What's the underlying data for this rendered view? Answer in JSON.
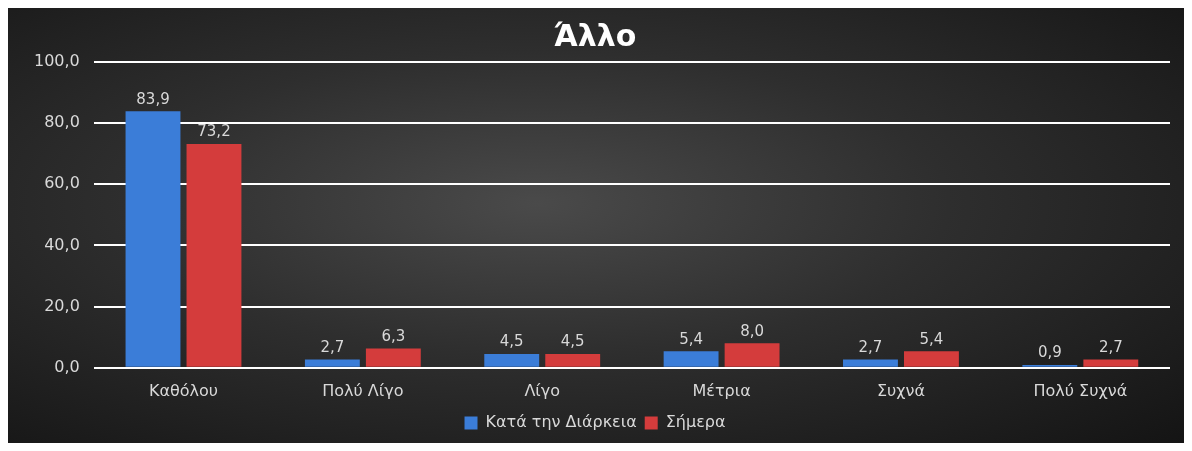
{
  "chart_data": {
    "type": "bar",
    "title": "Άλλο",
    "categories": [
      "Καθόλου",
      "Πολύ Λίγο",
      "Λίγο",
      "Μέτρια",
      "Συχνά",
      "Πολύ Συχνά"
    ],
    "series": [
      {
        "name": "Κατά την Διάρκεια",
        "color": "#3b7dd8",
        "values": [
          83.9,
          2.7,
          4.5,
          5.4,
          2.7,
          0.9
        ],
        "value_labels": [
          "83,9",
          "2,7",
          "4,5",
          "5,4",
          "2,7",
          "0,9"
        ]
      },
      {
        "name": "Σήμερα",
        "color": "#d43c3c",
        "values": [
          73.2,
          6.3,
          4.5,
          8.0,
          5.4,
          2.7
        ],
        "value_labels": [
          "73,2",
          "6,3",
          "4,5",
          "8,0",
          "5,4",
          "2,7"
        ]
      }
    ],
    "ylim": [
      0,
      100
    ],
    "yticks": [
      {
        "value": 0,
        "label": "0,0"
      },
      {
        "value": 20,
        "label": "20,0"
      },
      {
        "value": 40,
        "label": "40,0"
      },
      {
        "value": 60,
        "label": "60,0"
      },
      {
        "value": 80,
        "label": "80,0"
      },
      {
        "value": 100,
        "label": "100,0"
      }
    ],
    "grid": "y",
    "legend": "bottom"
  }
}
